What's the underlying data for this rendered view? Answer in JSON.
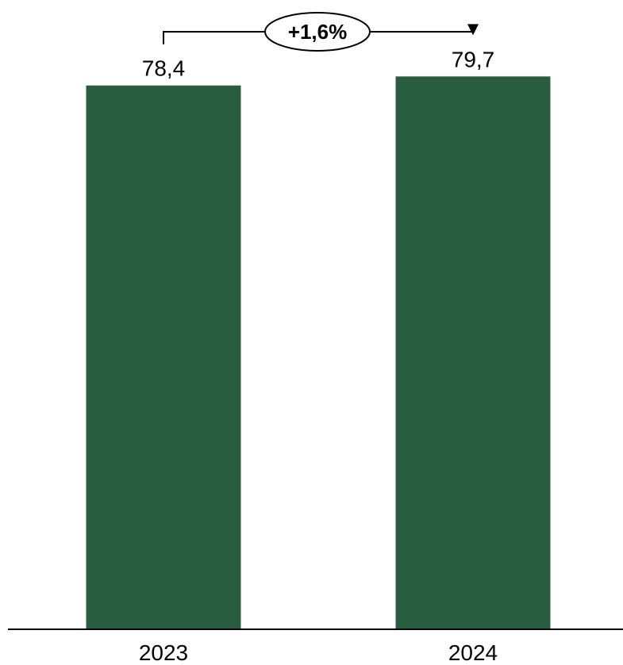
{
  "colors": {
    "bar": "#285e3f",
    "axis": "#000000",
    "text": "#000000"
  },
  "chart_data": {
    "type": "bar",
    "categories": [
      "2023",
      "2024"
    ],
    "values": [
      78.4,
      79.7
    ],
    "value_labels": [
      "78,4",
      "79,7"
    ],
    "ylim": [
      0,
      85
    ],
    "grid": false,
    "legend": "none",
    "annotations": [
      {
        "type": "change-arrow",
        "from": "2023",
        "to": "2024",
        "text": "+1,6%"
      }
    ]
  }
}
